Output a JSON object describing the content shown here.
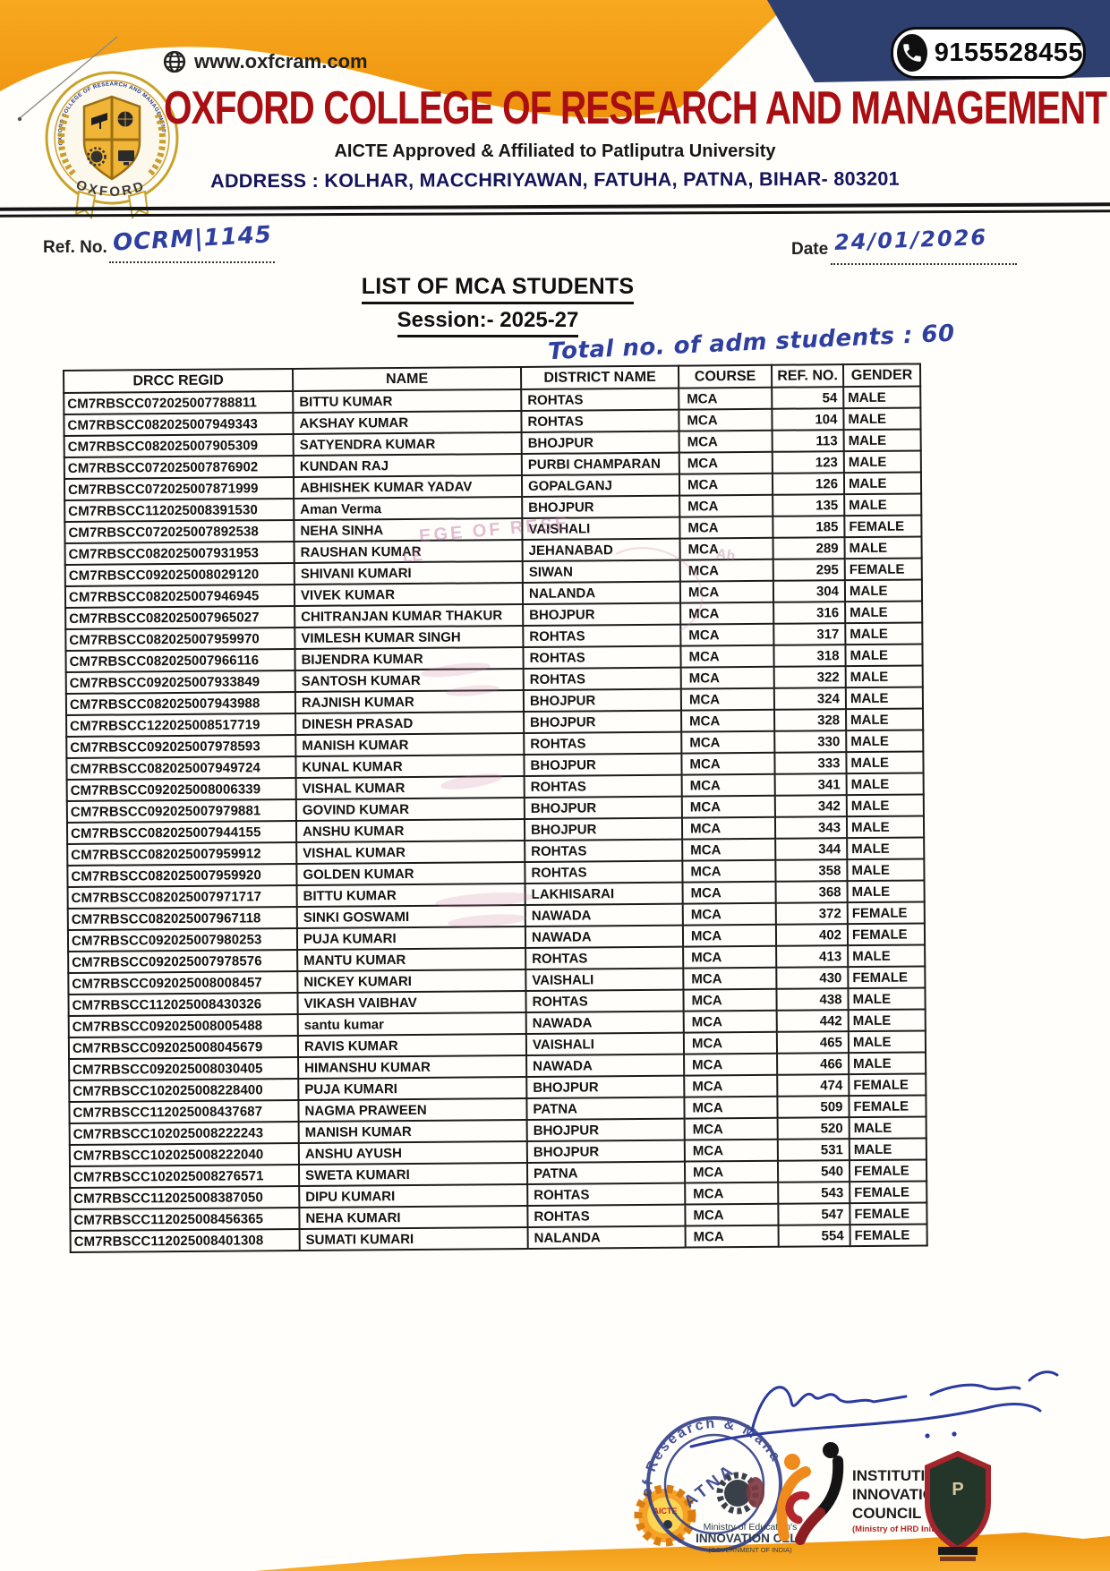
{
  "header": {
    "phone": "9155528455",
    "website": "www.oxfcram.com",
    "college_name": "OXFORD COLLEGE OF RESEARCH AND MANAGEMENT",
    "aicte_line": "AICTE Approved & Affiliated to Patliputra University",
    "address_line": "ADDRESS : KOLHAR, MACCHRIYAWAN, FATUHA, PATNA, BIHAR- 803201",
    "logo_ring_text": "OXFORD COLLEGE OF RESEARCH AND MANAGEMENT",
    "logo_banner_text": "OXFORD"
  },
  "refline": {
    "ref_label": "Ref. No.",
    "ref_value": "OCRM|1145",
    "date_label": "Date",
    "date_value": "24/01/2026"
  },
  "doc": {
    "title": "LIST OF MCA STUDENTS",
    "session": "Session:- 2025-27",
    "note": "Total no. of adm students : 60"
  },
  "table": {
    "headers": [
      "DRCC REGID",
      "NAME",
      "DISTRICT NAME",
      "COURSE",
      "REF. NO.",
      "GENDER"
    ],
    "col_keys": [
      "regid",
      "name",
      "district",
      "course",
      "ref",
      "gender"
    ],
    "rows": [
      {
        "regid": "CM7RBSCC072025007788811",
        "name": "BITTU KUMAR",
        "district": "ROHTAS",
        "course": "MCA",
        "ref": "54",
        "gender": "MALE"
      },
      {
        "regid": "CM7RBSCC082025007949343",
        "name": "AKSHAY KUMAR",
        "district": "ROHTAS",
        "course": "MCA",
        "ref": "104",
        "gender": "MALE"
      },
      {
        "regid": "CM7RBSCC082025007905309",
        "name": "SATYENDRA KUMAR",
        "district": "BHOJPUR",
        "course": "MCA",
        "ref": "113",
        "gender": "MALE"
      },
      {
        "regid": "CM7RBSCC072025007876902",
        "name": "KUNDAN RAJ",
        "district": "PURBI CHAMPARAN",
        "course": "MCA",
        "ref": "123",
        "gender": "MALE"
      },
      {
        "regid": "CM7RBSCC072025007871999",
        "name": "ABHISHEK KUMAR YADAV",
        "district": "GOPALGANJ",
        "course": "MCA",
        "ref": "126",
        "gender": "MALE"
      },
      {
        "regid": "CM7RBSCC112025008391530",
        "name": "Aman Verma",
        "district": "BHOJPUR",
        "course": "MCA",
        "ref": "135",
        "gender": "MALE"
      },
      {
        "regid": "CM7RBSCC072025007892538",
        "name": "NEHA SINHA",
        "district": "VAISHALI",
        "course": "MCA",
        "ref": "185",
        "gender": "FEMALE"
      },
      {
        "regid": "CM7RBSCC082025007931953",
        "name": "RAUSHAN KUMAR",
        "district": "JEHANABAD",
        "course": "MCA",
        "ref": "289",
        "gender": "MALE"
      },
      {
        "regid": "CM7RBSCC092025008029120",
        "name": "SHIVANI KUMARI",
        "district": "SIWAN",
        "course": "MCA",
        "ref": "295",
        "gender": "FEMALE"
      },
      {
        "regid": "CM7RBSCC082025007946945",
        "name": "VIVEK KUMAR",
        "district": "NALANDA",
        "course": "MCA",
        "ref": "304",
        "gender": "MALE"
      },
      {
        "regid": "CM7RBSCC082025007965027",
        "name": "CHITRANJAN KUMAR THAKUR",
        "district": "BHOJPUR",
        "course": "MCA",
        "ref": "316",
        "gender": "MALE"
      },
      {
        "regid": "CM7RBSCC082025007959970",
        "name": "VIMLESH KUMAR SINGH",
        "district": "ROHTAS",
        "course": "MCA",
        "ref": "317",
        "gender": "MALE"
      },
      {
        "regid": "CM7RBSCC082025007966116",
        "name": "BIJENDRA KUMAR",
        "district": "ROHTAS",
        "course": "MCA",
        "ref": "318",
        "gender": "MALE"
      },
      {
        "regid": "CM7RBSCC092025007933849",
        "name": "SANTOSH KUMAR",
        "district": "ROHTAS",
        "course": "MCA",
        "ref": "322",
        "gender": "MALE"
      },
      {
        "regid": "CM7RBSCC082025007943988",
        "name": "RAJNISH KUMAR",
        "district": "BHOJPUR",
        "course": "MCA",
        "ref": "324",
        "gender": "MALE"
      },
      {
        "regid": "CM7RBSCC122025008517719",
        "name": "DINESH PRASAD",
        "district": "BHOJPUR",
        "course": "MCA",
        "ref": "328",
        "gender": "MALE"
      },
      {
        "regid": "CM7RBSCC092025007978593",
        "name": "MANISH KUMAR",
        "district": "ROHTAS",
        "course": "MCA",
        "ref": "330",
        "gender": "MALE"
      },
      {
        "regid": "CM7RBSCC082025007949724",
        "name": "KUNAL KUMAR",
        "district": "BHOJPUR",
        "course": "MCA",
        "ref": "333",
        "gender": "MALE"
      },
      {
        "regid": "CM7RBSCC092025008006339",
        "name": "VISHAL KUMAR",
        "district": "ROHTAS",
        "course": "MCA",
        "ref": "341",
        "gender": "MALE"
      },
      {
        "regid": "CM7RBSCC092025007979881",
        "name": "GOVIND KUMAR",
        "district": "BHOJPUR",
        "course": "MCA",
        "ref": "342",
        "gender": "MALE"
      },
      {
        "regid": "CM7RBSCC082025007944155",
        "name": "ANSHU KUMAR",
        "district": "BHOJPUR",
        "course": "MCA",
        "ref": "343",
        "gender": "MALE"
      },
      {
        "regid": "CM7RBSCC082025007959912",
        "name": "VISHAL KUMAR",
        "district": "ROHTAS",
        "course": "MCA",
        "ref": "344",
        "gender": "MALE"
      },
      {
        "regid": "CM7RBSCC082025007959920",
        "name": "GOLDEN KUMAR",
        "district": "ROHTAS",
        "course": "MCA",
        "ref": "358",
        "gender": "MALE"
      },
      {
        "regid": "CM7RBSCC082025007971717",
        "name": "BITTU KUMAR",
        "district": "LAKHISARAI",
        "course": "MCA",
        "ref": "368",
        "gender": "MALE"
      },
      {
        "regid": "CM7RBSCC082025007967118",
        "name": "SINKI GOSWAMI",
        "district": "NAWADA",
        "course": "MCA",
        "ref": "372",
        "gender": "FEMALE"
      },
      {
        "regid": "CM7RBSCC092025007980253",
        "name": "PUJA KUMARI",
        "district": "NAWADA",
        "course": "MCA",
        "ref": "402",
        "gender": "FEMALE"
      },
      {
        "regid": "CM7RBSCC092025007978576",
        "name": "MANTU KUMAR",
        "district": "ROHTAS",
        "course": "MCA",
        "ref": "413",
        "gender": "MALE"
      },
      {
        "regid": "CM7RBSCC092025008008457",
        "name": "NICKEY KUMARI",
        "district": "VAISHALI",
        "course": "MCA",
        "ref": "430",
        "gender": "FEMALE"
      },
      {
        "regid": "CM7RBSCC112025008430326",
        "name": "VIKASH VAIBHAV",
        "district": "ROHTAS",
        "course": "MCA",
        "ref": "438",
        "gender": "MALE"
      },
      {
        "regid": "CM7RBSCC092025008005488",
        "name": "santu kumar",
        "district": "NAWADA",
        "course": "MCA",
        "ref": "442",
        "gender": "MALE"
      },
      {
        "regid": "CM7RBSCC092025008045679",
        "name": "RAVIS KUMAR",
        "district": "VAISHALI",
        "course": "MCA",
        "ref": "465",
        "gender": "MALE"
      },
      {
        "regid": "CM7RBSCC092025008030405",
        "name": "HIMANSHU KUMAR",
        "district": "NAWADA",
        "course": "MCA",
        "ref": "466",
        "gender": "MALE"
      },
      {
        "regid": "CM7RBSCC102025008228400",
        "name": "PUJA KUMARI",
        "district": "BHOJPUR",
        "course": "MCA",
        "ref": "474",
        "gender": "FEMALE"
      },
      {
        "regid": "CM7RBSCC112025008437687",
        "name": "NAGMA PRAWEEN",
        "district": "PATNA",
        "course": "MCA",
        "ref": "509",
        "gender": "FEMALE"
      },
      {
        "regid": "CM7RBSCC102025008222243",
        "name": "MANISH KUMAR",
        "district": "BHOJPUR",
        "course": "MCA",
        "ref": "520",
        "gender": "MALE"
      },
      {
        "regid": "CM7RBSCC102025008222040",
        "name": "ANSHU AYUSH",
        "district": "BHOJPUR",
        "course": "MCA",
        "ref": "531",
        "gender": "MALE"
      },
      {
        "regid": "CM7RBSCC102025008276571",
        "name": "SWETA KUMARI",
        "district": "PATNA",
        "course": "MCA",
        "ref": "540",
        "gender": "FEMALE"
      },
      {
        "regid": "CM7RBSCC112025008387050",
        "name": "DIPU KUMARI",
        "district": "ROHTAS",
        "course": "MCA",
        "ref": "543",
        "gender": "FEMALE"
      },
      {
        "regid": "CM7RBSCC112025008456365",
        "name": "NEHA KUMARI",
        "district": "ROHTAS",
        "course": "MCA",
        "ref": "547",
        "gender": "FEMALE"
      },
      {
        "regid": "CM7RBSCC112025008401308",
        "name": "SUMATI KUMARI",
        "district": "NALANDA",
        "course": "MCA",
        "ref": "554",
        "gender": "FEMALE"
      }
    ]
  },
  "artifacts": {
    "a1": "EGE OF RESE",
    "a2": "LE",
    "a3": "Ah"
  },
  "footer": {
    "stamp_arc": "of Research & Mana",
    "stamp_inner": "ATNA",
    "aicte_text": "AICTE",
    "mic": [
      "Ministry of Education's",
      "INNOVATION CELL",
      "(GOVERNMENT OF INDIA)"
    ],
    "iic": [
      "INSTITUTION'S",
      "INNOVATION",
      "COUNCIL",
      "(Ministry of HRD Initiative)"
    ]
  }
}
